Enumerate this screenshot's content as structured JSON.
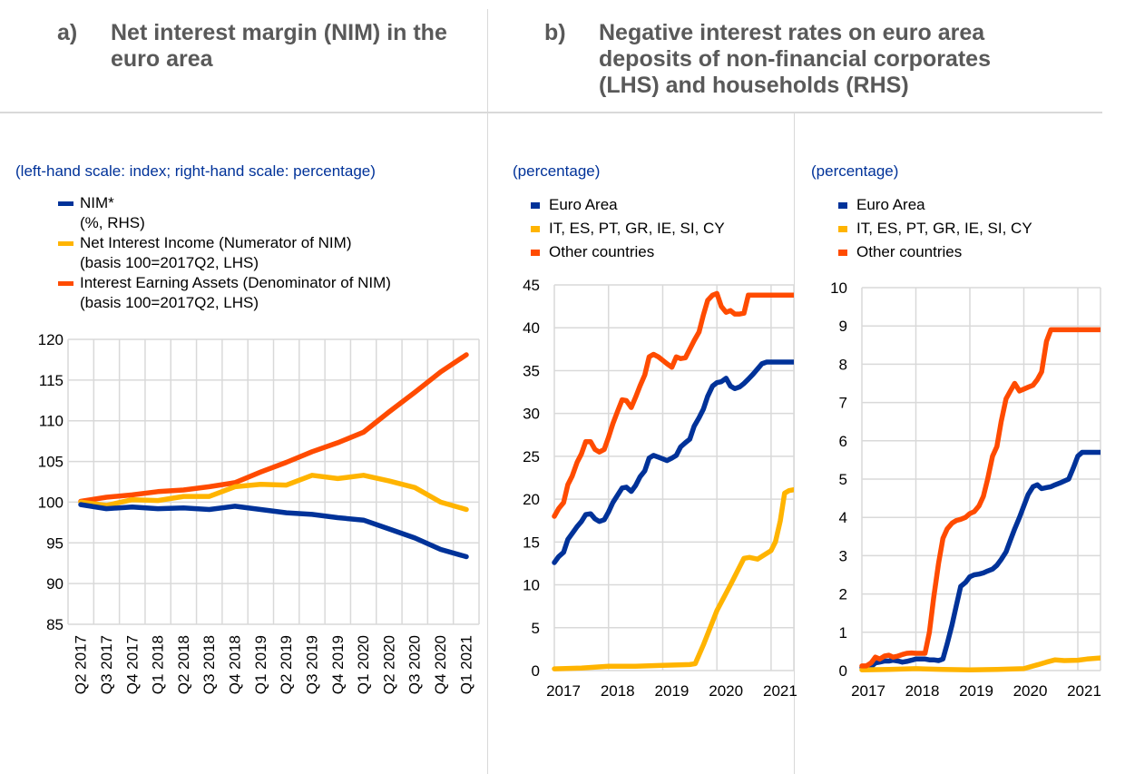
{
  "panel_a": {
    "letter": "a)",
    "title_lines": [
      "Net interest margin (NIM) in the",
      "euro area"
    ],
    "subtitle": "(left-hand scale: index; right-hand scale: percentage)",
    "legend": [
      {
        "label": "NIM*",
        "sub": "(%, RHS)",
        "color": "#003299"
      },
      {
        "label": "Net Interest Income (Numerator of NIM)",
        "sub": "(basis 100=2017Q2, LHS)",
        "color": "#FFB400"
      },
      {
        "label": "Interest Earning Assets (Denominator of NIM)",
        "sub": "(basis 100=2017Q2, LHS)",
        "color": "#FF4B00"
      }
    ]
  },
  "panel_b": {
    "letter": "b)",
    "title_lines": [
      "Negative interest rates on euro area",
      "deposits of non-financial corporates",
      "(LHS) and households (RHS)"
    ],
    "left_subtitle": "(percentage)",
    "right_subtitle": "(percentage)",
    "legend": [
      {
        "label": "Euro Area",
        "color": "#003299"
      },
      {
        "label": "IT, ES, PT, GR, IE, SI, CY",
        "color": "#FFB400"
      },
      {
        "label": "Other countries",
        "color": "#FF4B00"
      }
    ]
  },
  "chart_data": [
    {
      "id": "nim",
      "type": "line",
      "title": "Net interest margin (NIM) in the euro area",
      "xlabel": "",
      "ylabel": "",
      "ylim": [
        85,
        120
      ],
      "yticks": [
        85,
        90,
        95,
        100,
        105,
        110,
        115,
        120
      ],
      "grid": true,
      "legend_position": "top-left",
      "categories": [
        "Q2 2017",
        "Q3 2017",
        "Q4 2017",
        "Q1 2018",
        "Q2 2018",
        "Q3 2018",
        "Q4 2018",
        "Q1 2019",
        "Q2 2019",
        "Q3 2019",
        "Q4 2019",
        "Q1 2020",
        "Q2 2020",
        "Q3 2020",
        "Q4 2020",
        "Q1 2021"
      ],
      "series": [
        {
          "name": "Interest Earning Assets (Denominator of NIM)",
          "color": "#FF4B00",
          "values": [
            100.1,
            100.6,
            100.9,
            101.3,
            101.5,
            101.9,
            102.4,
            103.7,
            104.9,
            106.2,
            107.3,
            108.6,
            111.1,
            113.5,
            116.0,
            118.1
          ]
        },
        {
          "name": "Net Interest Income (Numerator of NIM)",
          "color": "#FFB400",
          "values": [
            100.0,
            99.6,
            100.3,
            100.2,
            100.7,
            100.7,
            101.9,
            102.2,
            102.1,
            103.3,
            102.9,
            103.3,
            102.6,
            101.8,
            100.0,
            99.1
          ]
        },
        {
          "name": "NIM* (%, RHS)",
          "color": "#003299",
          "values": [
            99.7,
            99.2,
            99.4,
            99.2,
            99.3,
            99.1,
            99.5,
            99.1,
            98.7,
            98.5,
            98.1,
            97.8,
            96.7,
            95.6,
            94.2,
            93.3
          ]
        }
      ]
    },
    {
      "id": "nfc",
      "type": "line",
      "title": "Negative interest rates on deposits of non-financial corporates (LHS)",
      "ylabel": "(percentage)",
      "ylim": [
        0,
        45
      ],
      "yticks": [
        0,
        5,
        10,
        15,
        20,
        25,
        30,
        35,
        40,
        45
      ],
      "x_ticks": [
        "2017",
        "2018",
        "2019",
        "2020",
        "2021"
      ],
      "x_range": [
        2017.0,
        2021.42
      ],
      "grid": true,
      "legend_position": "top-left",
      "series": [
        {
          "name": "Euro Area",
          "color": "#003299",
          "x": [
            2017.0,
            2017.08,
            2017.17,
            2017.25,
            2017.33,
            2017.42,
            2017.5,
            2017.58,
            2017.67,
            2017.75,
            2017.83,
            2017.92,
            2018.0,
            2018.08,
            2018.17,
            2018.25,
            2018.33,
            2018.42,
            2018.5,
            2018.58,
            2018.67,
            2018.75,
            2018.83,
            2018.92,
            2019.0,
            2019.08,
            2019.17,
            2019.25,
            2019.33,
            2019.42,
            2019.5,
            2019.58,
            2019.67,
            2019.75,
            2019.83,
            2019.92,
            2020.0,
            2020.08,
            2020.17,
            2020.25,
            2020.33,
            2020.42,
            2020.5,
            2020.58,
            2020.67,
            2020.75,
            2020.83,
            2020.92,
            2021.0,
            2021.08,
            2021.17,
            2021.25,
            2021.33,
            2021.42
          ],
          "values": [
            12.6,
            13.3,
            13.8,
            15.3,
            16.0,
            16.8,
            17.4,
            18.2,
            18.3,
            17.7,
            17.4,
            17.6,
            18.5,
            19.6,
            20.5,
            21.3,
            21.4,
            20.9,
            21.6,
            22.6,
            23.3,
            24.8,
            25.1,
            24.9,
            24.7,
            24.5,
            24.8,
            25.1,
            26.1,
            26.6,
            27.0,
            28.5,
            29.5,
            30.5,
            32.0,
            33.2,
            33.6,
            33.7,
            34.1,
            33.2,
            32.9,
            33.1,
            33.5,
            34.0,
            34.6,
            35.2,
            35.8,
            36.0,
            36.0,
            36.0,
            36.0,
            36.0,
            36.0,
            36.0
          ]
        },
        {
          "name": "IT, ES, PT, GR, IE, SI, CY",
          "color": "#FFB400",
          "x": [
            2017.0,
            2017.5,
            2018.0,
            2018.5,
            2019.0,
            2019.5,
            2019.6,
            2019.75,
            2020.0,
            2020.25,
            2020.5,
            2020.6,
            2020.75,
            2021.0,
            2021.08,
            2021.17,
            2021.25,
            2021.33,
            2021.42
          ],
          "values": [
            0.2,
            0.3,
            0.5,
            0.5,
            0.6,
            0.7,
            0.8,
            3.0,
            7.0,
            10.0,
            13.1,
            13.2,
            13.0,
            14.0,
            15.0,
            17.5,
            20.7,
            21.0,
            21.1
          ]
        },
        {
          "name": "Other countries",
          "color": "#FF4B00",
          "x": [
            2017.0,
            2017.08,
            2017.17,
            2017.25,
            2017.33,
            2017.42,
            2017.5,
            2017.58,
            2017.67,
            2017.75,
            2017.83,
            2017.92,
            2018.0,
            2018.08,
            2018.17,
            2018.25,
            2018.33,
            2018.42,
            2018.5,
            2018.58,
            2018.67,
            2018.75,
            2018.83,
            2018.92,
            2019.0,
            2019.08,
            2019.17,
            2019.25,
            2019.33,
            2019.42,
            2019.5,
            2019.58,
            2019.67,
            2019.75,
            2019.83,
            2019.92,
            2020.0,
            2020.08,
            2020.17,
            2020.25,
            2020.33,
            2020.42,
            2020.5,
            2020.58,
            2020.67,
            2020.75,
            2020.83,
            2020.92,
            2021.0,
            2021.08,
            2021.17,
            2021.25,
            2021.33,
            2021.42
          ],
          "values": [
            18.0,
            18.9,
            19.6,
            21.7,
            22.7,
            24.3,
            25.3,
            26.7,
            26.7,
            25.8,
            25.5,
            25.8,
            27.2,
            28.8,
            30.3,
            31.6,
            31.5,
            30.7,
            31.9,
            33.2,
            34.5,
            36.6,
            36.9,
            36.6,
            36.2,
            35.8,
            35.4,
            36.6,
            36.4,
            36.5,
            37.5,
            38.5,
            39.5,
            41.5,
            43.2,
            43.8,
            44.0,
            42.5,
            41.8,
            42.0,
            41.6,
            41.6,
            41.7,
            43.8,
            43.8,
            43.8,
            43.8,
            43.8,
            43.8,
            43.8,
            43.8,
            43.8,
            43.8,
            43.8
          ]
        }
      ]
    },
    {
      "id": "hh",
      "type": "line",
      "title": "Negative interest rates on deposits of households (RHS)",
      "ylabel": "(percentage)",
      "ylim": [
        0,
        10
      ],
      "yticks": [
        0,
        1,
        2,
        3,
        4,
        5,
        6,
        7,
        8,
        9,
        10
      ],
      "x_ticks": [
        "2017",
        "2018",
        "2019",
        "2020",
        "2021"
      ],
      "x_range": [
        2017.0,
        2021.42
      ],
      "grid": true,
      "legend_position": "top-left",
      "series": [
        {
          "name": "Euro Area",
          "color": "#003299",
          "x": [
            2017.0,
            2017.08,
            2017.17,
            2017.25,
            2017.33,
            2017.42,
            2017.5,
            2017.58,
            2017.67,
            2017.75,
            2017.83,
            2017.92,
            2018.0,
            2018.08,
            2018.17,
            2018.25,
            2018.33,
            2018.42,
            2018.5,
            2018.58,
            2018.67,
            2018.75,
            2018.83,
            2018.92,
            2019.0,
            2019.08,
            2019.17,
            2019.25,
            2019.33,
            2019.42,
            2019.5,
            2019.58,
            2019.67,
            2019.75,
            2019.83,
            2019.92,
            2020.0,
            2020.08,
            2020.17,
            2020.25,
            2020.33,
            2020.42,
            2020.5,
            2020.58,
            2020.67,
            2020.75,
            2020.83,
            2020.92,
            2021.0,
            2021.08,
            2021.17,
            2021.25,
            2021.33,
            2021.4,
            2021.42
          ],
          "values": [
            0.08,
            0.08,
            0.1,
            0.2,
            0.22,
            0.25,
            0.25,
            0.27,
            0.25,
            0.22,
            0.24,
            0.27,
            0.3,
            0.3,
            0.3,
            0.28,
            0.28,
            0.26,
            0.3,
            0.7,
            1.2,
            1.7,
            2.2,
            2.3,
            2.45,
            2.5,
            2.52,
            2.55,
            2.6,
            2.65,
            2.75,
            2.9,
            3.1,
            3.4,
            3.7,
            4.0,
            4.3,
            4.6,
            4.8,
            4.85,
            4.75,
            4.78,
            4.8,
            4.85,
            4.9,
            4.95,
            5.0,
            5.3,
            5.6,
            5.7,
            5.7,
            5.7,
            5.7,
            5.7,
            5.7
          ]
        },
        {
          "name": "IT, ES, PT, GR, IE, SI, CY",
          "color": "#FFB400",
          "x": [
            2017.0,
            2017.5,
            2018.0,
            2018.5,
            2019.0,
            2019.5,
            2020.0,
            2020.25,
            2020.42,
            2020.58,
            2020.75,
            2021.0,
            2021.17,
            2021.42
          ],
          "values": [
            0.02,
            0.03,
            0.05,
            0.03,
            0.02,
            0.03,
            0.05,
            0.15,
            0.22,
            0.28,
            0.26,
            0.27,
            0.3,
            0.33
          ]
        },
        {
          "name": "Other countries",
          "color": "#FF4B00",
          "x": [
            2017.0,
            2017.08,
            2017.17,
            2017.25,
            2017.33,
            2017.42,
            2017.5,
            2017.58,
            2017.67,
            2017.75,
            2017.83,
            2017.92,
            2018.0,
            2018.08,
            2018.17,
            2018.25,
            2018.33,
            2018.42,
            2018.5,
            2018.58,
            2018.67,
            2018.75,
            2018.83,
            2018.92,
            2019.0,
            2019.08,
            2019.17,
            2019.25,
            2019.33,
            2019.42,
            2019.5,
            2019.58,
            2019.67,
            2019.75,
            2019.83,
            2019.92,
            2020.0,
            2020.08,
            2020.17,
            2020.25,
            2020.33,
            2020.42,
            2020.5,
            2020.58,
            2020.67,
            2020.75,
            2020.83,
            2020.92,
            2021.0,
            2021.08,
            2021.17,
            2021.25,
            2021.33,
            2021.4,
            2021.42
          ],
          "values": [
            0.12,
            0.12,
            0.2,
            0.35,
            0.3,
            0.38,
            0.4,
            0.35,
            0.38,
            0.42,
            0.45,
            0.46,
            0.45,
            0.45,
            0.45,
            1.0,
            1.9,
            2.8,
            3.45,
            3.7,
            3.85,
            3.92,
            3.95,
            4.0,
            4.1,
            4.15,
            4.3,
            4.55,
            5.0,
            5.6,
            5.85,
            6.5,
            7.1,
            7.3,
            7.5,
            7.3,
            7.35,
            7.4,
            7.45,
            7.6,
            7.8,
            8.6,
            8.9,
            8.9,
            8.9,
            8.9,
            8.9,
            8.9,
            8.9,
            8.9,
            8.9,
            8.9,
            8.9,
            8.9,
            8.9
          ]
        }
      ]
    }
  ]
}
